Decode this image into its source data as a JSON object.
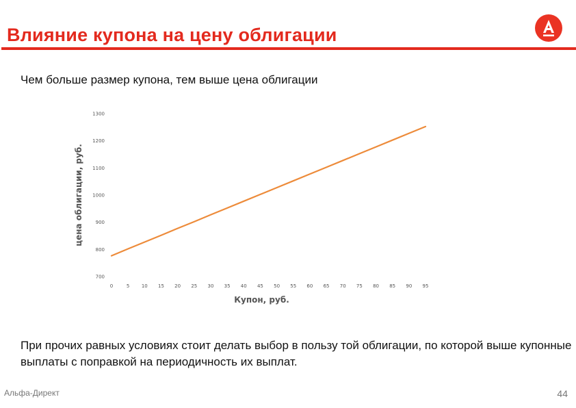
{
  "slide": {
    "title": "Влияние купона на цену облигации",
    "subtitle": "Чем больше размер купона, тем выше цена облигации",
    "note": "При прочих равных условиях стоит делать выбор в пользу той облигации, по которой выше купонные выплаты с поправкой на периодичность их выплат.",
    "footer_brand": "Альфа-Директ",
    "page_number": "44",
    "logo_icon": "alfa-bank-logo-icon",
    "accent_color": "#e32a1e"
  },
  "chart_data": {
    "type": "line",
    "xlabel": "Купон, руб.",
    "ylabel": "цена облигации, руб.",
    "x": [
      0,
      5,
      10,
      15,
      20,
      25,
      30,
      35,
      40,
      45,
      50,
      55,
      60,
      65,
      70,
      75,
      80,
      85,
      90,
      95
    ],
    "series": [
      {
        "values": [
          776.5,
          802,
          827,
          852,
          877.5,
          902,
          927.5,
          952.5,
          977.5,
          1002.5,
          1027.5,
          1052.5,
          1077.5,
          1102.5,
          1127.5,
          1152.5,
          1177.5,
          1202.5,
          1227.5,
          1252.5
        ],
        "color": "#ed8b3a"
      }
    ],
    "ylim": [
      700,
      1300
    ],
    "yticks": [
      700,
      800,
      900,
      1000,
      1100,
      1200,
      1300
    ],
    "grid": false,
    "legend": "none"
  }
}
